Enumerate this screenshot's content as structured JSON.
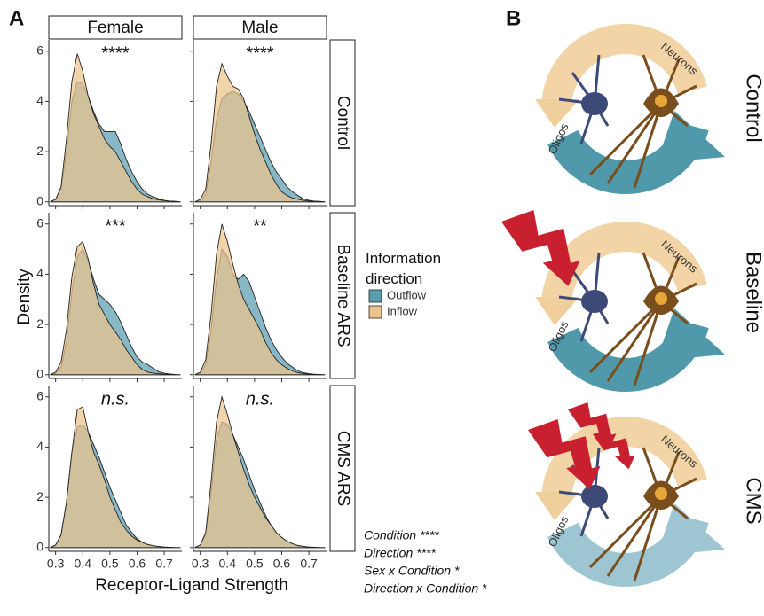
{
  "chart_data": {
    "type": "density",
    "panel_label": "A",
    "x_label": "Receptor-Ligand Strength",
    "y_label": "Density",
    "columns": [
      "Female",
      "Male"
    ],
    "rows": [
      "Control",
      "Baseline ARS",
      "CMS ARS"
    ],
    "legend_title": "Information direction",
    "legend_position": "right",
    "series": [
      {
        "name": "Outflow",
        "color": "#5a9dae"
      },
      {
        "name": "Inflow",
        "color": "#ecc38c"
      }
    ],
    "x": [
      0.28,
      0.3,
      0.32,
      0.34,
      0.36,
      0.38,
      0.4,
      0.42,
      0.44,
      0.46,
      0.48,
      0.5,
      0.52,
      0.54,
      0.56,
      0.58,
      0.6,
      0.62,
      0.64,
      0.66,
      0.68,
      0.7,
      0.72,
      0.74,
      0.76
    ],
    "xlim": [
      0.275,
      0.765
    ],
    "ylim": [
      -0.15,
      6.45
    ],
    "xticks": [
      0.3,
      0.4,
      0.5,
      0.6,
      0.7
    ],
    "yticks": [
      0,
      2,
      4,
      6
    ],
    "panels": [
      {
        "row": 0,
        "col": 0,
        "annotation": "****",
        "series_values": [
          [
            0,
            0.1,
            0.5,
            2.0,
            4.0,
            4.8,
            4.7,
            4.2,
            3.6,
            3.1,
            2.8,
            2.8,
            2.8,
            2.3,
            1.7,
            1.2,
            0.8,
            0.5,
            0.3,
            0.2,
            0.12,
            0.06,
            0.03,
            0.02,
            0
          ],
          [
            0,
            0.1,
            0.6,
            2.5,
            4.8,
            5.9,
            5.2,
            4.2,
            3.5,
            3.0,
            2.5,
            2.2,
            2.0,
            1.6,
            1.2,
            0.8,
            0.5,
            0.3,
            0.2,
            0.12,
            0.08,
            0.05,
            0.03,
            0.02,
            0
          ]
        ]
      },
      {
        "row": 0,
        "col": 1,
        "annotation": "****",
        "series_values": [
          [
            0,
            0.05,
            0.3,
            1.6,
            3.3,
            4.1,
            4.3,
            4.4,
            4.3,
            4.0,
            3.6,
            3.1,
            2.6,
            2.1,
            1.6,
            1.2,
            0.9,
            0.6,
            0.4,
            0.25,
            0.12,
            0.06,
            0.03,
            0.02,
            0
          ],
          [
            0,
            0.1,
            0.5,
            2.3,
            4.6,
            5.5,
            5.0,
            4.6,
            4.5,
            4.1,
            3.4,
            2.7,
            2.1,
            1.6,
            1.1,
            0.7,
            0.4,
            0.25,
            0.15,
            0.1,
            0.06,
            0.03,
            0.02,
            0.01,
            0
          ]
        ]
      },
      {
        "row": 1,
        "col": 0,
        "annotation": "***",
        "series_values": [
          [
            0,
            0.05,
            0.3,
            1.3,
            3.3,
            4.7,
            5.0,
            4.5,
            3.8,
            3.2,
            3.0,
            2.8,
            2.5,
            2.1,
            1.6,
            1.1,
            0.7,
            0.5,
            0.4,
            0.25,
            0.12,
            0.06,
            0.03,
            0.01,
            0
          ],
          [
            0,
            0.1,
            0.5,
            1.8,
            3.9,
            5.1,
            5.3,
            4.6,
            3.6,
            2.8,
            2.4,
            2.0,
            1.7,
            1.4,
            1.0,
            0.7,
            0.4,
            0.2,
            0.1,
            0.06,
            0.04,
            0.02,
            0.01,
            0,
            0
          ]
        ]
      },
      {
        "row": 1,
        "col": 1,
        "annotation": "**",
        "series_values": [
          [
            0,
            0.05,
            0.4,
            1.8,
            3.8,
            5.0,
            4.7,
            4.0,
            3.8,
            4.0,
            3.7,
            3.1,
            2.5,
            1.9,
            1.4,
            1.0,
            0.7,
            0.45,
            0.3,
            0.15,
            0.08,
            0.04,
            0.02,
            0.01,
            0
          ],
          [
            0,
            0.1,
            0.6,
            2.4,
            4.8,
            6.0,
            5.3,
            4.4,
            3.6,
            3.0,
            2.6,
            2.2,
            1.8,
            1.3,
            0.9,
            0.6,
            0.4,
            0.25,
            0.15,
            0.08,
            0.04,
            0.02,
            0.01,
            0,
            0
          ]
        ]
      },
      {
        "row": 2,
        "col": 0,
        "annotation": "n.s.",
        "series_values": [
          [
            0,
            0.1,
            0.5,
            1.8,
            3.8,
            4.8,
            4.9,
            4.6,
            4.1,
            3.6,
            3.0,
            2.4,
            1.9,
            1.4,
            0.9,
            0.6,
            0.35,
            0.2,
            0.12,
            0.07,
            0.04,
            0.02,
            0.01,
            0,
            0
          ],
          [
            0,
            0.1,
            0.5,
            1.8,
            3.8,
            5.5,
            5.6,
            4.6,
            3.8,
            3.3,
            2.7,
            2.0,
            1.5,
            1.0,
            0.7,
            0.45,
            0.3,
            0.2,
            0.12,
            0.07,
            0.04,
            0.02,
            0.01,
            0,
            0
          ]
        ]
      },
      {
        "row": 2,
        "col": 1,
        "annotation": "n.s.",
        "series_values": [
          [
            0,
            0.1,
            0.5,
            2.2,
            4.3,
            5.0,
            4.9,
            4.5,
            4.0,
            3.5,
            2.9,
            2.3,
            1.8,
            1.3,
            0.9,
            0.6,
            0.4,
            0.25,
            0.15,
            0.08,
            0.04,
            0.02,
            0.01,
            0,
            0
          ],
          [
            0,
            0.1,
            0.6,
            2.6,
            5.0,
            6.0,
            5.3,
            4.5,
            3.8,
            3.1,
            2.5,
            2.0,
            1.6,
            1.2,
            0.9,
            0.6,
            0.4,
            0.25,
            0.15,
            0.08,
            0.04,
            0.02,
            0.01,
            0,
            0
          ]
        ]
      }
    ],
    "stats": [
      "Condition ****",
      "Direction ****",
      "Sex x Condition *",
      "Direction x Condition *"
    ]
  },
  "illustration": {
    "panel_label": "B",
    "conditions": [
      {
        "label": "Control",
        "neurons": "Neurons",
        "oligos": "Oligos"
      },
      {
        "label": "Baseline",
        "neurons": "Neurons",
        "oligos": "Oligos"
      },
      {
        "label": "CMS",
        "neurons": "Neurons",
        "oligos": "Oligos"
      }
    ]
  }
}
